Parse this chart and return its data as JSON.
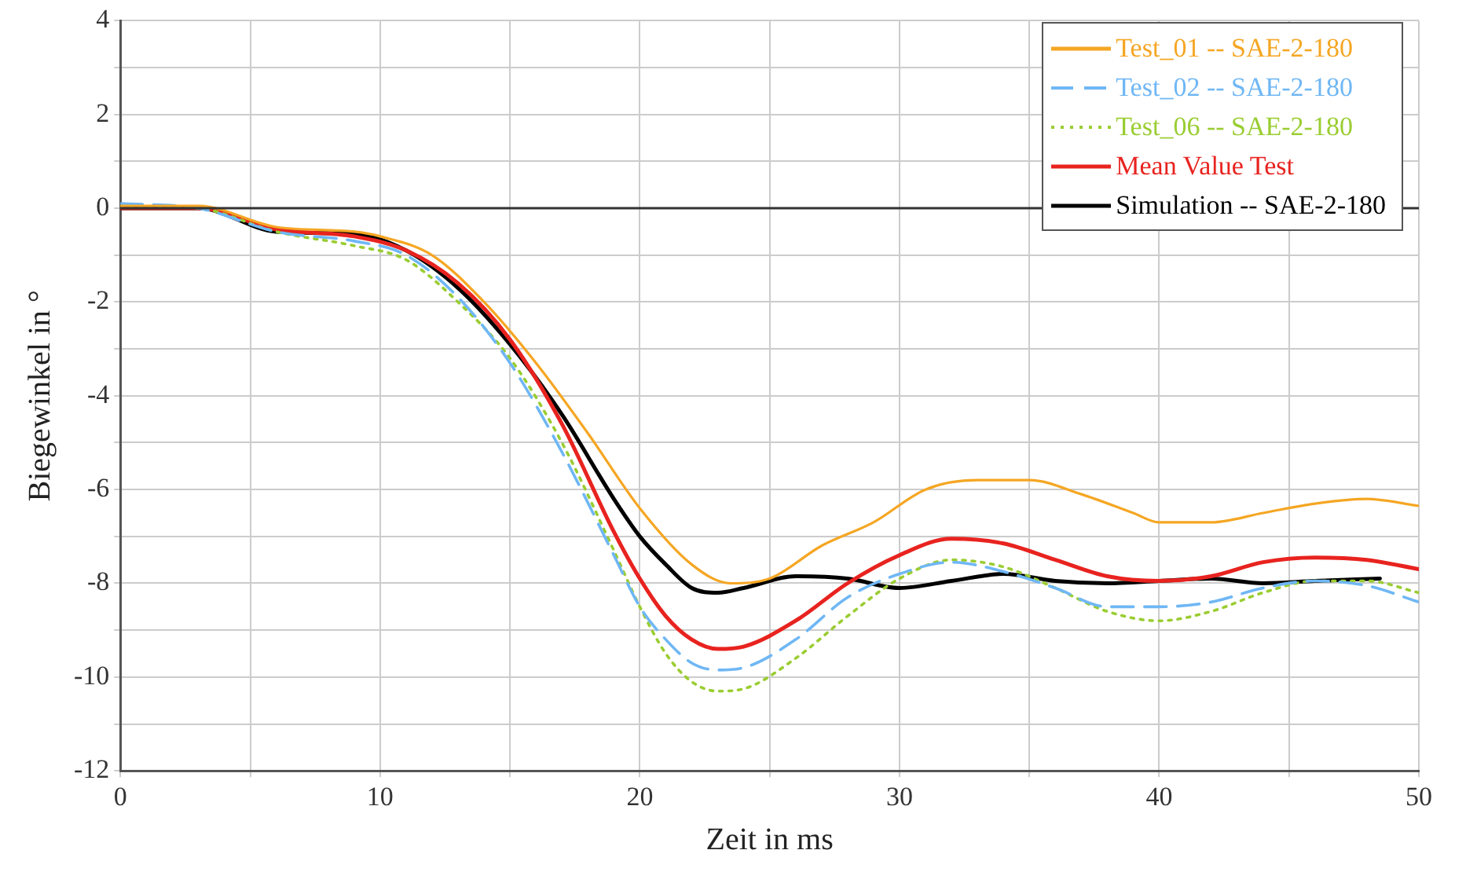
{
  "chart_data": {
    "type": "line",
    "xlabel": "Zeit in ms",
    "ylabel": "Biegewinkel in °",
    "xlim": [
      0,
      50
    ],
    "ylim": [
      -12,
      4
    ],
    "xticks": [
      0,
      {
        "value": 5,
        "label": null
      },
      10,
      {
        "value": 15,
        "label": null
      },
      20,
      {
        "value": 25,
        "label": null
      },
      30,
      {
        "value": 35,
        "label": null
      },
      40,
      {
        "value": 45,
        "label": null
      },
      50
    ],
    "yticks": [
      -12,
      {
        "value": -11,
        "label": null
      },
      -10,
      {
        "value": -9,
        "label": null
      },
      -8,
      {
        "value": -7,
        "label": null
      },
      -6,
      {
        "value": -5,
        "label": null
      },
      -4,
      {
        "value": -3,
        "label": null
      },
      -2,
      {
        "value": -1,
        "label": null
      },
      0,
      {
        "value": 1,
        "label": null
      },
      2,
      {
        "value": 3,
        "label": null
      },
      4
    ],
    "grid": true,
    "legend": "top right",
    "marker": "none",
    "ref_lines": [
      {
        "axis": "y",
        "value": 0,
        "color": "#333333"
      }
    ],
    "series": [
      {
        "name": "Test_01 -- SAE-2-180",
        "color": "#f5a623",
        "line_style": "solid",
        "x": [
          0,
          3,
          6,
          9,
          10,
          12,
          14,
          16,
          18,
          20,
          22,
          23.5,
          25,
          27,
          29,
          31,
          33,
          35,
          37,
          39,
          40,
          42,
          44,
          46,
          48,
          50
        ],
        "values": [
          0.05,
          0.05,
          -0.4,
          -0.5,
          -0.6,
          -1.0,
          -2.0,
          -3.3,
          -4.8,
          -6.4,
          -7.6,
          -8.0,
          -7.9,
          -7.2,
          -6.7,
          -6.0,
          -5.8,
          -5.8,
          -6.1,
          -6.5,
          -6.7,
          -6.7,
          -6.5,
          -6.3,
          -6.2,
          -6.35
        ]
      },
      {
        "name": "Test_02 -- SAE-2-180",
        "color": "#6fb7f5",
        "line_style": "dashed",
        "x": [
          0,
          3,
          6,
          9,
          11,
          13,
          15,
          17,
          19,
          20,
          21,
          22,
          23,
          24,
          26,
          28,
          30,
          32,
          34,
          36,
          38,
          40,
          42,
          44,
          46,
          48,
          50
        ],
        "values": [
          0.1,
          0,
          -0.5,
          -0.7,
          -1.0,
          -1.9,
          -3.3,
          -5.2,
          -7.4,
          -8.5,
          -9.2,
          -9.7,
          -9.85,
          -9.8,
          -9.2,
          -8.3,
          -7.8,
          -7.55,
          -7.75,
          -8.1,
          -8.5,
          -8.5,
          -8.4,
          -8.1,
          -7.95,
          -8.05,
          -8.4
        ]
      },
      {
        "name": "Test_06 -- SAE-2-180",
        "color": "#9acd32",
        "line_style": "dotted",
        "x": [
          0,
          3,
          6,
          9,
          11,
          13,
          15,
          17,
          19,
          20,
          21,
          22,
          23,
          24,
          26,
          28,
          30,
          32,
          34,
          36,
          38,
          40,
          42,
          44,
          46,
          48,
          50
        ],
        "values": [
          0.05,
          0,
          -0.5,
          -0.8,
          -1.1,
          -2.0,
          -3.2,
          -5.0,
          -7.3,
          -8.5,
          -9.5,
          -10.1,
          -10.3,
          -10.25,
          -9.6,
          -8.7,
          -7.9,
          -7.5,
          -7.65,
          -8.1,
          -8.6,
          -8.8,
          -8.6,
          -8.2,
          -7.95,
          -7.95,
          -8.2
        ]
      },
      {
        "name": "Mean Value Test",
        "color": "#e8231f",
        "line_style": "solid",
        "x": [
          0,
          3,
          6,
          9,
          11,
          13,
          15,
          17,
          19,
          20,
          21,
          22,
          23,
          24,
          26,
          28,
          30,
          32,
          34,
          36,
          38,
          40,
          42,
          44,
          46,
          48,
          50
        ],
        "values": [
          0,
          0,
          -0.45,
          -0.6,
          -0.9,
          -1.6,
          -2.8,
          -4.6,
          -6.9,
          -7.9,
          -8.7,
          -9.2,
          -9.4,
          -9.35,
          -8.8,
          -8.0,
          -7.4,
          -7.05,
          -7.15,
          -7.5,
          -7.85,
          -7.95,
          -7.85,
          -7.55,
          -7.45,
          -7.5,
          -7.7
        ]
      },
      {
        "name": "Simulation -- SAE-2-180",
        "color": "#000000",
        "line_style": "solid",
        "x": [
          0,
          3,
          6,
          9,
          11,
          13,
          15,
          17,
          19,
          20,
          21,
          22,
          23,
          24,
          26,
          28,
          30,
          32,
          34,
          36,
          38,
          40,
          42,
          44,
          46,
          48.5
        ],
        "values": [
          0,
          0,
          -0.5,
          -0.55,
          -0.9,
          -1.7,
          -2.9,
          -4.4,
          -6.2,
          -7.0,
          -7.6,
          -8.1,
          -8.2,
          -8.1,
          -7.85,
          -7.9,
          -8.1,
          -7.95,
          -7.8,
          -7.95,
          -8.0,
          -7.95,
          -7.9,
          -8.0,
          -7.95,
          -7.9
        ]
      }
    ]
  }
}
